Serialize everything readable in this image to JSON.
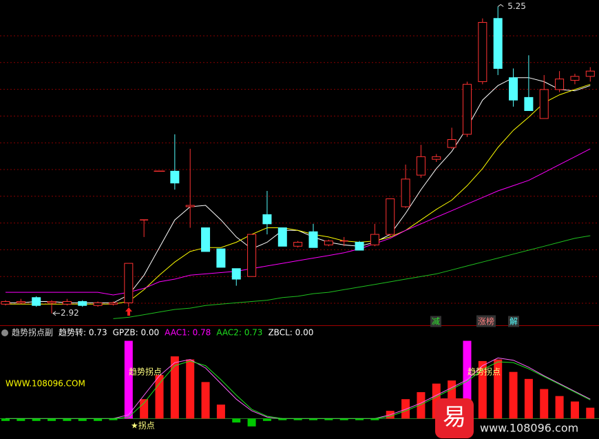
{
  "chart_data": [
    {
      "type": "candlestick",
      "ylim": [
        2.84,
        5.3
      ],
      "grid": true,
      "up_color": "#ff3232",
      "down_color": "#54ffff",
      "open": [
        2.99,
        3.0,
        3.04,
        3.0,
        2.99,
        3.01,
        2.98,
        2.99,
        3.0,
        3.63,
        4.0,
        4.0,
        3.73,
        3.57,
        3.41,
        3.26,
        3.2,
        3.67,
        3.57,
        3.43,
        3.54,
        3.44,
        3.47,
        3.46,
        3.44,
        3.52,
        3.73,
        3.97,
        4.09,
        4.18,
        4.28,
        4.68,
        5.16,
        4.71,
        4.56,
        4.4,
        4.62,
        4.69,
        4.72
      ],
      "close": [
        3.01,
        3.01,
        2.98,
        3.01,
        3.01,
        2.98,
        3.0,
        3.0,
        3.3,
        3.63,
        4.0,
        3.91,
        3.74,
        3.39,
        3.27,
        3.18,
        3.52,
        3.6,
        3.43,
        3.46,
        3.42,
        3.47,
        3.47,
        3.4,
        3.52,
        3.79,
        3.94,
        4.11,
        4.11,
        4.24,
        4.66,
        5.13,
        4.78,
        4.54,
        4.46,
        4.62,
        4.7,
        4.72,
        4.76
      ],
      "high": [
        3.02,
        3.03,
        3.05,
        3.02,
        3.03,
        3.02,
        3.01,
        3.01,
        3.3,
        3.63,
        4.0,
        4.28,
        4.17,
        3.57,
        3.41,
        3.26,
        3.52,
        3.85,
        3.57,
        3.47,
        3.6,
        3.48,
        3.5,
        3.47,
        3.6,
        3.79,
        4.05,
        4.2,
        4.13,
        4.33,
        4.68,
        5.16,
        5.25,
        4.78,
        4.88,
        4.73,
        4.76,
        4.74,
        4.79
      ],
      "low": [
        2.98,
        2.99,
        2.97,
        2.92,
        2.98,
        2.97,
        2.97,
        2.98,
        2.97,
        3.5,
        4.0,
        3.86,
        3.57,
        3.39,
        3.27,
        3.13,
        3.2,
        3.52,
        3.43,
        3.42,
        3.42,
        3.43,
        3.43,
        3.4,
        3.43,
        3.5,
        3.72,
        3.95,
        4.07,
        4.17,
        4.26,
        4.66,
        4.73,
        4.49,
        4.46,
        4.4,
        4.6,
        4.66,
        4.68
      ],
      "series": [
        {
          "color": "#ffffff",
          "values": [
            3.0,
            3.0,
            3.01,
            3.01,
            3.0,
            3.0,
            3.0,
            3.0,
            3.06,
            3.21,
            3.42,
            3.63,
            3.73,
            3.74,
            3.63,
            3.5,
            3.41,
            3.46,
            3.55,
            3.55,
            3.5,
            3.46,
            3.44,
            3.43,
            3.46,
            3.52,
            3.68,
            3.86,
            4.02,
            4.15,
            4.33,
            4.54,
            4.65,
            4.71,
            4.71,
            4.68,
            4.62,
            4.61,
            4.65
          ]
        },
        {
          "color": "#ffff00",
          "values": [
            2.99,
            2.99,
            2.99,
            2.99,
            2.99,
            2.99,
            2.99,
            2.99,
            3.01,
            3.1,
            3.21,
            3.31,
            3.39,
            3.42,
            3.42,
            3.46,
            3.52,
            3.57,
            3.57,
            3.55,
            3.52,
            3.5,
            3.47,
            3.46,
            3.47,
            3.5,
            3.55,
            3.63,
            3.71,
            3.78,
            3.89,
            4.02,
            4.18,
            4.31,
            4.41,
            4.52,
            4.58,
            4.62,
            4.66
          ]
        },
        {
          "color": "#ff00ff",
          "values": [
            3.08,
            3.08,
            3.08,
            3.08,
            3.08,
            3.08,
            3.08,
            3.06,
            3.08,
            3.11,
            3.16,
            3.18,
            3.21,
            3.22,
            3.23,
            3.24,
            3.26,
            3.28,
            3.3,
            3.32,
            3.34,
            3.36,
            3.38,
            3.41,
            3.45,
            3.49,
            3.55,
            3.6,
            3.65,
            3.7,
            3.75,
            3.8,
            3.85,
            3.89,
            3.93,
            3.99,
            4.05,
            4.11,
            4.17
          ]
        },
        {
          "color": "#1fc01f",
          "values": [
            null,
            null,
            null,
            null,
            null,
            null,
            null,
            2.88,
            2.89,
            2.91,
            2.93,
            2.95,
            2.96,
            2.98,
            2.99,
            3.0,
            3.01,
            3.02,
            3.04,
            3.05,
            3.07,
            3.08,
            3.1,
            3.12,
            3.14,
            3.16,
            3.18,
            3.2,
            3.22,
            3.25,
            3.28,
            3.31,
            3.34,
            3.37,
            3.4,
            3.43,
            3.46,
            3.49,
            3.51
          ]
        }
      ],
      "signals": [
        {
          "text": "减",
          "color": "#2ee02e"
        },
        {
          "text": "涨榜",
          "color": "#ff8080"
        },
        {
          "text": "解",
          "color": "#54ffff"
        }
      ]
    },
    {
      "type": "bar",
      "title": "趋势拐点副",
      "ylim": [
        -0.2,
        1.04
      ],
      "legend": [
        {
          "text": "趋势转: 0.73",
          "color": "#ffffff"
        },
        {
          "text": "GPZB: 0.00",
          "color": "#ffffff"
        },
        {
          "text": "AAC1: 0.78",
          "color": "#ff00ff"
        },
        {
          "text": "AAC2: 0.73",
          "color": "#1fe01f"
        },
        {
          "text": "ZBCL: 0.00",
          "color": "#ffffff"
        }
      ],
      "up_color": "#ff1a1a",
      "down_color": "#00c800",
      "values": [
        -0.03,
        -0.03,
        -0.03,
        -0.03,
        -0.03,
        -0.03,
        -0.03,
        -0.02,
        0.02,
        0.25,
        0.56,
        0.8,
        0.76,
        0.47,
        0.18,
        -0.05,
        -0.1,
        -0.03,
        -0.02,
        -0.02,
        -0.02,
        -0.02,
        -0.02,
        -0.02,
        -0.02,
        0.1,
        0.25,
        0.34,
        0.45,
        0.49,
        0.62,
        0.74,
        0.76,
        0.6,
        0.51,
        0.38,
        0.29,
        0.22,
        0.14
      ],
      "pulse": {
        "color": "#ff00ff",
        "values": [
          null,
          null,
          null,
          null,
          null,
          null,
          null,
          null,
          1.0,
          null,
          null,
          null,
          null,
          null,
          null,
          null,
          null,
          null,
          null,
          null,
          null,
          null,
          null,
          null,
          null,
          null,
          null,
          null,
          null,
          null,
          1.0,
          null,
          null,
          null,
          null,
          null,
          null,
          null,
          null
        ]
      },
      "series": [
        {
          "color": "#ff66ff",
          "values": [
            0,
            0,
            0,
            0,
            0,
            0,
            0,
            0,
            0.05,
            0.3,
            0.55,
            0.72,
            0.76,
            0.65,
            0.45,
            0.25,
            0.1,
            0.02,
            0,
            0,
            0,
            0,
            0,
            0,
            0,
            0.05,
            0.12,
            0.2,
            0.3,
            0.4,
            0.5,
            0.68,
            0.78,
            0.75,
            0.66,
            0.55,
            0.45,
            0.35,
            0.25
          ]
        },
        {
          "color": "#1fe01f",
          "values": [
            0,
            0,
            0,
            0,
            0,
            0,
            0,
            0,
            0.02,
            0.2,
            0.45,
            0.68,
            0.74,
            0.68,
            0.5,
            0.3,
            0.12,
            0.03,
            0,
            0,
            0,
            0,
            0,
            0,
            0,
            0.03,
            0.1,
            0.18,
            0.28,
            0.38,
            0.48,
            0.63,
            0.73,
            0.72,
            0.64,
            0.54,
            0.44,
            0.34,
            0.24
          ]
        }
      ],
      "annotations": [
        "趋势拐点",
        "趋势拐点",
        "★拐点",
        "WWW.108096.COM"
      ]
    }
  ],
  "watermark": {
    "icon": "易",
    "text": "www.108096.com"
  }
}
